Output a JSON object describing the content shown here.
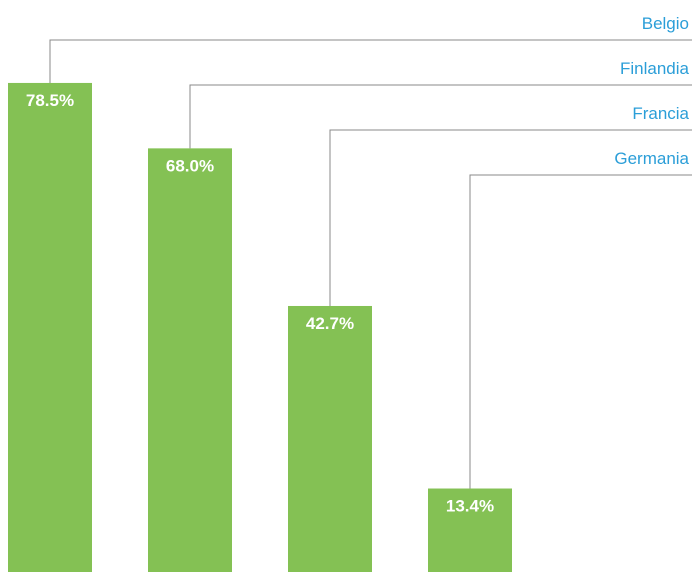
{
  "chart_data": {
    "type": "bar",
    "categories": [
      "Belgio",
      "Finlandia",
      "Francia",
      "Germania"
    ],
    "values": [
      78.5,
      68.0,
      42.7,
      13.4
    ],
    "value_labels": [
      "78.5%",
      "68.0%",
      "42.7%",
      "13.4%"
    ],
    "ylim": [
      0,
      100
    ],
    "grid": false,
    "legend": "none",
    "colors": {
      "bar": "#84c154",
      "label": "#2b9ed8",
      "leader_line": "#888888",
      "value_text": "#ffffff"
    }
  }
}
